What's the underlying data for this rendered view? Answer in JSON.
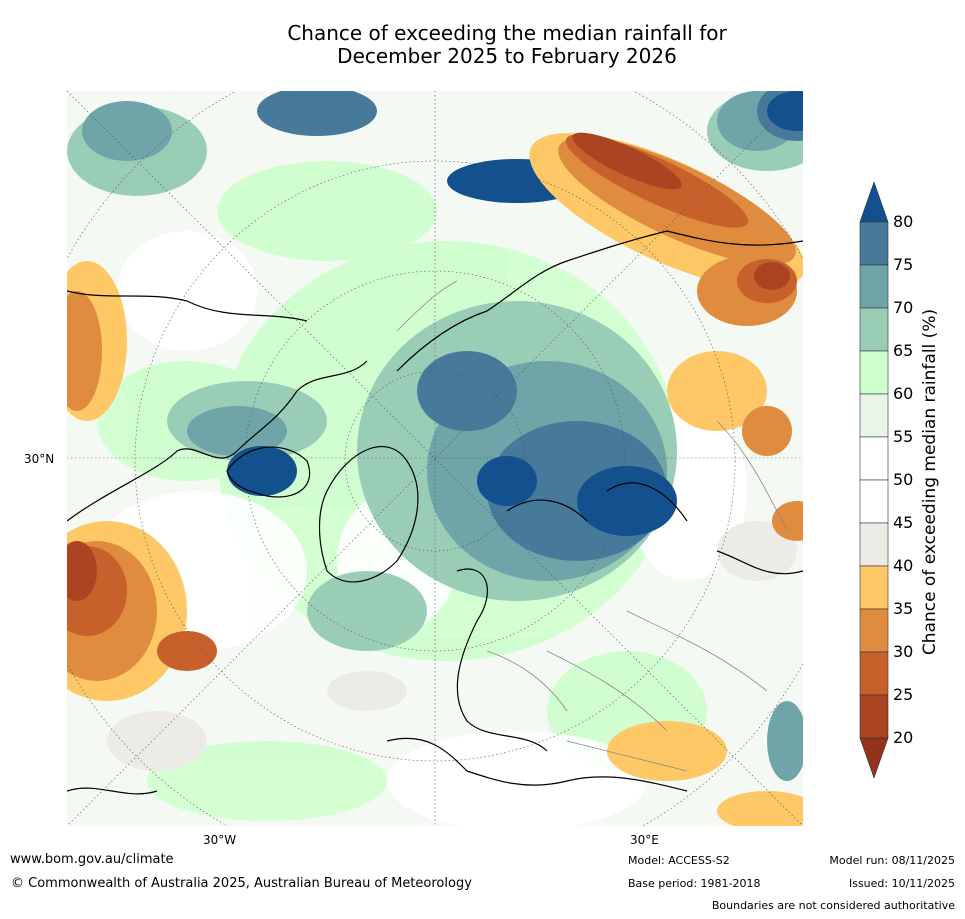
{
  "title": {
    "line1": "Chance of exceeding the median rainfall for",
    "line2": "December 2025 to February 2026"
  },
  "map": {
    "projection": "north-polar-stereographic",
    "lat_label": "30°N",
    "lon_labels": {
      "west": "30°W",
      "east": "30°E"
    }
  },
  "colorbar": {
    "label": "Chance of exceeding median rainfall (%)",
    "ticks": [
      "80",
      "75",
      "70",
      "65",
      "60",
      "55",
      "50",
      "45",
      "40",
      "35",
      "30",
      "25",
      "20"
    ],
    "bins": [
      {
        "range": "above 80",
        "color": "#13508e"
      },
      {
        "range": "75-80",
        "color": "#46799a"
      },
      {
        "range": "70-75",
        "color": "#6fa4a8"
      },
      {
        "range": "65-70",
        "color": "#99cdb6"
      },
      {
        "range": "60-65",
        "color": "#ccffcc"
      },
      {
        "range": "55-60",
        "color": "#eaf5ea"
      },
      {
        "range": "50-55",
        "color": "#ffffff"
      },
      {
        "range": "45-50",
        "color": "#ffffff"
      },
      {
        "range": "40-45",
        "color": "#edebe6"
      },
      {
        "range": "35-40",
        "color": "#fdc865"
      },
      {
        "range": "30-35",
        "color": "#e08c3f"
      },
      {
        "range": "25-30",
        "color": "#c8602b"
      },
      {
        "range": "20-25",
        "color": "#ab4423"
      },
      {
        "range": "below 20",
        "color": "#93331d"
      }
    ]
  },
  "footer": {
    "url": "www.bom.gov.au/climate",
    "copyright": "© Commonwealth of Australia 2025, Australian Bureau of Meteorology",
    "model": "Model: ACCESS-S2",
    "base_period": "Base period: 1981-2018",
    "model_run": "Model run: 08/11/2025",
    "issued": "Issued: 10/11/2025",
    "boundaries": "Boundaries are not considered authoritative"
  }
}
